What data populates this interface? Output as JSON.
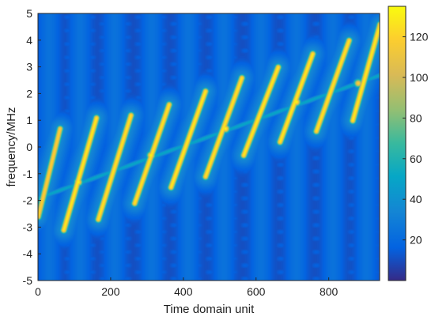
{
  "chart_data": {
    "type": "heatmap",
    "title": "",
    "xlabel": "Time domain unit",
    "ylabel": "frequency/MHz",
    "xlim": [
      0,
      940
    ],
    "ylim": [
      -5,
      5
    ],
    "x_ticks": [
      "0",
      "200",
      "400",
      "600",
      "800"
    ],
    "x_tick_values": [
      0,
      200,
      400,
      600,
      800
    ],
    "y_ticks": [
      "-5",
      "-4",
      "-3",
      "-2",
      "-1",
      "0",
      "1",
      "2",
      "3",
      "4",
      "5"
    ],
    "y_tick_values": [
      -5,
      -4,
      -3,
      -2,
      -1,
      0,
      1,
      2,
      3,
      4,
      5
    ],
    "colorbar": {
      "range": [
        0,
        135
      ],
      "ticks": [
        "20",
        "40",
        "60",
        "80",
        "100",
        "120"
      ],
      "tick_values": [
        20,
        40,
        60,
        80,
        100,
        120
      ],
      "colormap": "parula"
    },
    "background_level": 10,
    "chirps": [
      {
        "x_start": 0,
        "x_end": 60,
        "f_start": -2.6,
        "f_end": 0.7,
        "peak": 120
      },
      {
        "x_start": 70,
        "x_end": 160,
        "f_start": -3.1,
        "f_end": 1.1,
        "peak": 130
      },
      {
        "x_start": 165,
        "x_end": 255,
        "f_start": -2.7,
        "f_end": 1.2,
        "peak": 128
      },
      {
        "x_start": 265,
        "x_end": 360,
        "f_start": -2.1,
        "f_end": 1.6,
        "peak": 128
      },
      {
        "x_start": 365,
        "x_end": 460,
        "f_start": -1.5,
        "f_end": 2.1,
        "peak": 130
      },
      {
        "x_start": 460,
        "x_end": 560,
        "f_start": -1.1,
        "f_end": 2.6,
        "peak": 128
      },
      {
        "x_start": 565,
        "x_end": 660,
        "f_start": -0.3,
        "f_end": 3.0,
        "peak": 130
      },
      {
        "x_start": 665,
        "x_end": 755,
        "f_start": 0.2,
        "f_end": 3.5,
        "peak": 130
      },
      {
        "x_start": 765,
        "x_end": 855,
        "f_start": 0.6,
        "f_end": 4.0,
        "peak": 128
      },
      {
        "x_start": 865,
        "x_end": 940,
        "f_start": 1.0,
        "f_end": 4.6,
        "peak": 130
      }
    ],
    "baseline_line": {
      "x_start": 0,
      "x_end": 940,
      "f_start": -1.9,
      "f_end": 2.7,
      "peak": 85
    },
    "hotspots": [
      {
        "x": 110,
        "f": -1.3,
        "value": 135
      },
      {
        "x": 310,
        "f": -0.3,
        "value": 135
      },
      {
        "x": 515,
        "f": 0.7,
        "value": 135
      },
      {
        "x": 710,
        "f": 1.7,
        "value": 135
      },
      {
        "x": 880,
        "f": 2.4,
        "value": 120
      }
    ]
  }
}
